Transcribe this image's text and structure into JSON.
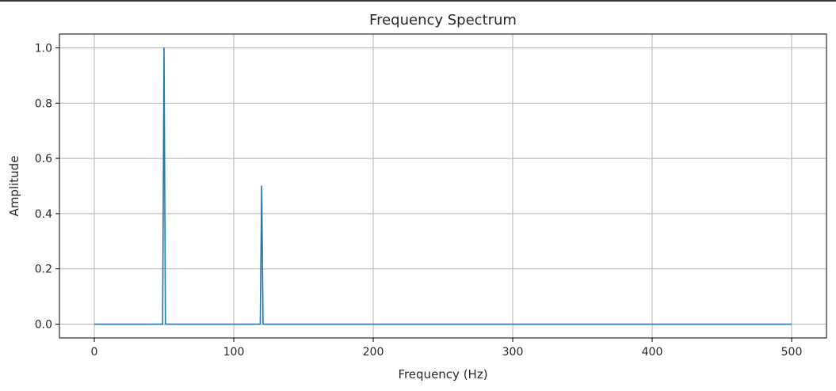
{
  "chart_data": {
    "type": "line",
    "title": "Frequency Spectrum",
    "xlabel": "Frequency (Hz)",
    "ylabel": "Amplitude",
    "xlim": [
      -25,
      525
    ],
    "ylim": [
      -0.05,
      1.05
    ],
    "xticks": [
      0,
      100,
      200,
      300,
      400,
      500
    ],
    "xtick_labels": [
      "0",
      "100",
      "200",
      "300",
      "400",
      "500"
    ],
    "yticks": [
      0.0,
      0.2,
      0.4,
      0.6,
      0.8,
      1.0
    ],
    "ytick_labels": [
      "0.0",
      "0.2",
      "0.4",
      "0.6",
      "0.8",
      "1.0"
    ],
    "grid": true,
    "line_color": "#1f77b4",
    "series": [
      {
        "x": [
          0,
          48,
          49,
          50,
          51,
          52,
          118,
          119,
          120,
          121,
          122,
          500
        ],
        "y": [
          0,
          0,
          0,
          1.0,
          0,
          0,
          0,
          0,
          0.5,
          0,
          0,
          0
        ]
      }
    ]
  }
}
